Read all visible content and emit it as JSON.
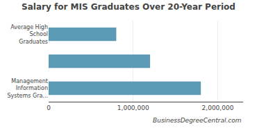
{
  "chart_data": {
    "type": "bar",
    "orientation": "horizontal",
    "title": "Salary for MIS Graduates Over 20-Year Period",
    "categories": [
      "Management\nInformation\nSystems Gra...",
      null,
      "Average High\nSchool\nGraduates"
    ],
    "values": [
      1800000,
      1200000,
      800000
    ],
    "color": "#5b9ab5",
    "xlim": [
      0,
      2300000
    ],
    "xticks": [
      0,
      {
        "value": 1000000,
        "label": "1,000,000"
      },
      {
        "value": 2000000,
        "label": "2,000,000"
      }
    ],
    "grid": true,
    "annotations": [
      "BusinessDegreeCentral.com"
    ]
  }
}
